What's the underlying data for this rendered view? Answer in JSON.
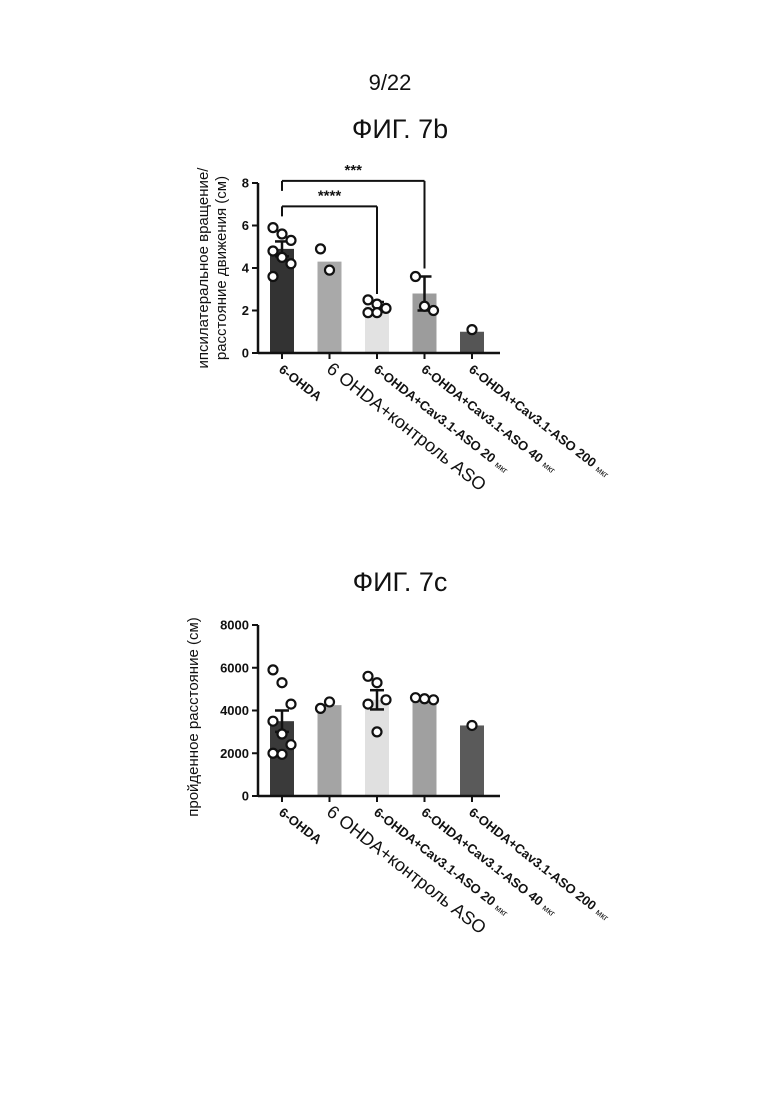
{
  "page_number": "9/22",
  "chart_data": [
    {
      "type": "bar",
      "title": "ФИГ. 7b",
      "ylabel_lines": [
        "ипсилатеральное вращение/",
        "расстояние движения (см)"
      ],
      "ylim": [
        0,
        8
      ],
      "yticks": [
        "0",
        "2",
        "4",
        "6",
        "8"
      ],
      "categories": [
        "6-OHDA",
        "6 OHDA+контроль ASO",
        "6-OHDA+Cav3.1-ASO 20 мкг",
        "6-OHDA+Cav3.1-ASO 40 мкг",
        "6-OHDA+Cav3.1-ASO 200 мкг"
      ],
      "category_labels": [
        {
          "main": "6-OHDA",
          "unit": ""
        },
        {
          "main": "6 OHDA+контроль ASO",
          "unit": ""
        },
        {
          "main": "6-OHDA+Cav3.1-ASO  20",
          "unit": "мкг"
        },
        {
          "main": "6-OHDA+Cav3.1-ASO  40",
          "unit": "мкг"
        },
        {
          "main": "6-OHDA+Cav3.1-ASO  200",
          "unit": "мкг"
        }
      ],
      "values": [
        4.9,
        4.3,
        2.2,
        2.8,
        1.0
      ],
      "errors": [
        0.35,
        0,
        0.2,
        0.8,
        0
      ],
      "points": [
        [
          5.9,
          5.6,
          5.3,
          4.8,
          4.5,
          4.2,
          3.6
        ],
        [
          4.9,
          3.9
        ],
        [
          2.5,
          2.3,
          2.1,
          1.9,
          1.9
        ],
        [
          3.6,
          2.2,
          2.0
        ],
        [
          1.1
        ]
      ],
      "bar_colors": [
        "#333333",
        "#a9a9a9",
        "#e2e2e2",
        "#9c9c9c",
        "#555555"
      ],
      "significance": [
        {
          "label": "***",
          "from": 0,
          "to": 3,
          "y": 8.1
        },
        {
          "label": "****",
          "from": 0,
          "to": 2,
          "y": 6.9
        }
      ]
    },
    {
      "type": "bar",
      "title": "ФИГ. 7c",
      "ylabel_lines": [
        "пройденное расстояние (см)"
      ],
      "ylim": [
        0,
        8000
      ],
      "yticks": [
        "0",
        "2000",
        "4000",
        "6000",
        "8000"
      ],
      "categories": [
        "6-OHDA",
        "6 OHDA+контроль ASO",
        "6-OHDA+Cav3.1-ASO 20 мкг",
        "6-OHDA+Cav3.1-ASO 40 мкг",
        "6-OHDA+Cav3.1-ASO 200 мкг"
      ],
      "category_labels": [
        {
          "main": "6-OHDA",
          "unit": ""
        },
        {
          "main": "6 OHDA+контроль ASO",
          "unit": ""
        },
        {
          "main": "6-OHDA+Cav3.1-ASO  20",
          "unit": "мкг"
        },
        {
          "main": "6-OHDA+Cav3.1-ASO  40",
          "unit": "мкг"
        },
        {
          "main": "6-OHDA+Cav3.1-ASO  200",
          "unit": "мкг"
        }
      ],
      "values": [
        3500,
        4250,
        4500,
        4600,
        3300
      ],
      "errors": [
        500,
        0,
        450,
        0,
        0
      ],
      "points": [
        [
          5900,
          5300,
          4300,
          3500,
          2900,
          2400,
          2000,
          1950
        ],
        [
          4100,
          4400
        ],
        [
          5600,
          5300,
          4500,
          4300,
          3000
        ],
        [
          4600,
          4550,
          4500
        ],
        [
          3300
        ]
      ],
      "bar_colors": [
        "#3a3a3a",
        "#a4a4a4",
        "#e0e0e0",
        "#a0a0a0",
        "#5a5a5a"
      ],
      "significance": []
    }
  ]
}
